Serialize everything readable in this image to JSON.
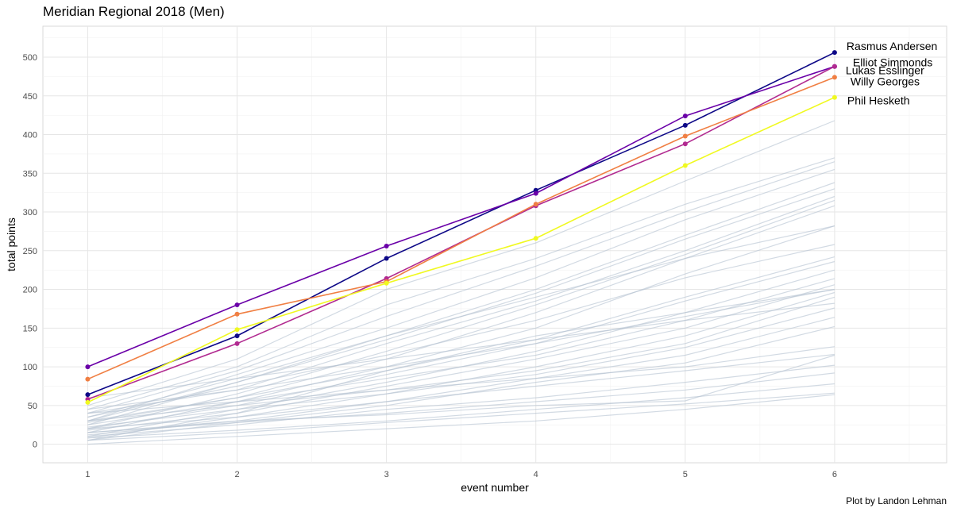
{
  "chart_data": {
    "type": "line",
    "title": "Meridian Regional 2018 (Men)",
    "xlabel": "event number",
    "ylabel": "total points",
    "caption": "Plot by Landon Lehman",
    "x": [
      1,
      2,
      3,
      4,
      5,
      6
    ],
    "xlim": [
      0.7,
      6.75
    ],
    "ylim": [
      -24,
      540
    ],
    "x_ticks": [
      1,
      2,
      3,
      4,
      5,
      6
    ],
    "y_ticks": [
      0,
      50,
      100,
      150,
      200,
      250,
      300,
      350,
      400,
      450,
      500
    ],
    "grid": true,
    "legend": "none",
    "highlighted_series": [
      {
        "name": "Rasmus Andersen",
        "color": "#0d0887",
        "values": [
          64,
          140,
          240,
          328,
          412,
          506
        ]
      },
      {
        "name": "Elliot Simmonds",
        "color": "#6a00a8",
        "values": [
          100,
          180,
          256,
          324,
          424,
          488
        ]
      },
      {
        "name": "Lukas Esslinger",
        "color": "#b12a90",
        "values": [
          58,
          130,
          214,
          308,
          388,
          488
        ]
      },
      {
        "name": "Willy Georges",
        "color": "#e16462",
        "values": [
          84,
          168,
          210,
          310,
          398,
          474
        ]
      },
      {
        "name": "Phil Hesketh",
        "color": "#f0f921",
        "values": [
          54,
          148,
          208,
          266,
          360,
          448
        ]
      }
    ],
    "marker_colors": [
      "#0d0887",
      "#6a00a8",
      "#b12a90",
      "#f07f43",
      "#f0f921"
    ],
    "line_colors": [
      "#0d0887",
      "#6a00a8",
      "#b12a90",
      "#f07f43",
      "#f0f921"
    ],
    "background_series_color": "#b4c2d0",
    "background_series": [
      [
        50,
        110,
        200,
        260,
        340,
        418
      ],
      [
        45,
        100,
        180,
        240,
        310,
        370
      ],
      [
        40,
        95,
        165,
        230,
        300,
        365
      ],
      [
        30,
        90,
        150,
        215,
        290,
        355
      ],
      [
        35,
        85,
        140,
        200,
        270,
        338
      ],
      [
        25,
        80,
        135,
        195,
        265,
        330
      ],
      [
        40,
        70,
        130,
        185,
        250,
        320
      ],
      [
        20,
        65,
        120,
        180,
        245,
        315
      ],
      [
        30,
        60,
        110,
        170,
        240,
        308
      ],
      [
        15,
        55,
        100,
        150,
        220,
        282
      ],
      [
        35,
        75,
        115,
        160,
        215,
        258
      ],
      [
        28,
        60,
        95,
        135,
        190,
        242
      ],
      [
        20,
        50,
        90,
        130,
        185,
        236
      ],
      [
        10,
        45,
        80,
        120,
        170,
        225
      ],
      [
        25,
        55,
        85,
        115,
        160,
        214
      ],
      [
        18,
        40,
        75,
        110,
        150,
        206
      ],
      [
        8,
        35,
        65,
        100,
        140,
        196
      ],
      [
        30,
        50,
        70,
        95,
        130,
        190
      ],
      [
        22,
        45,
        65,
        90,
        125,
        176
      ],
      [
        12,
        30,
        55,
        85,
        115,
        164
      ],
      [
        5,
        28,
        50,
        80,
        105,
        152
      ],
      [
        40,
        55,
        70,
        85,
        100,
        126
      ],
      [
        20,
        35,
        55,
        75,
        95,
        116
      ],
      [
        10,
        25,
        45,
        60,
        80,
        102
      ],
      [
        15,
        28,
        40,
        55,
        70,
        92
      ],
      [
        8,
        18,
        30,
        45,
        60,
        78
      ],
      [
        5,
        15,
        28,
        40,
        52,
        66
      ],
      [
        0,
        10,
        20,
        30,
        45,
        64
      ],
      [
        30,
        80,
        140,
        190,
        240,
        282
      ],
      [
        45,
        70,
        100,
        130,
        165,
        200
      ],
      [
        60,
        85,
        110,
        135,
        160,
        182
      ],
      [
        15,
        30,
        38,
        50,
        56,
        115
      ],
      [
        5,
        40,
        95,
        140,
        170,
        200
      ]
    ]
  }
}
